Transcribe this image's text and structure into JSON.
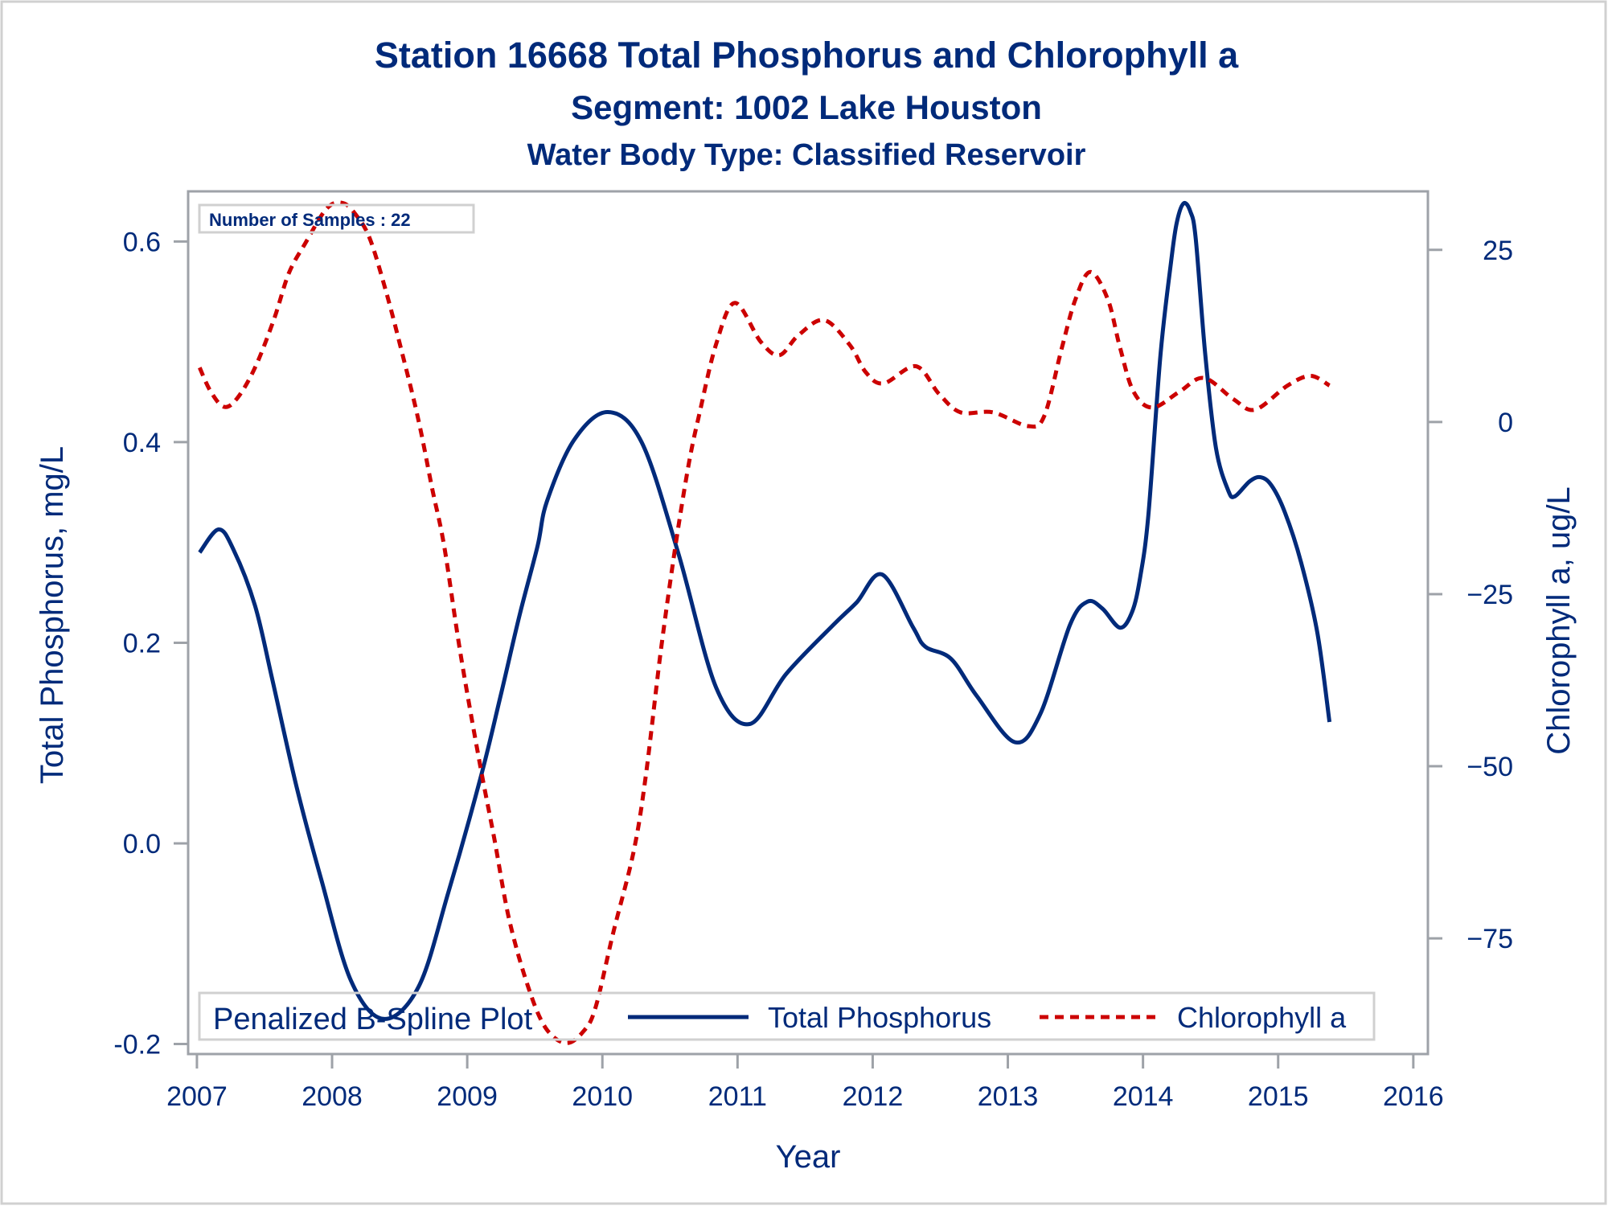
{
  "chart_data": {
    "type": "line",
    "title": "Station 16668  Total Phosphorus and Chlorophyll a",
    "subtitle": "Segment: 1002  Lake Houston",
    "subtitle2": "Water Body Type: Classified Reservoir",
    "xlabel": "Year",
    "ylabel": "Total Phosphorus, mg/L",
    "y2label": "Chlorophyll a, ug/L",
    "xlim": [
      2006.935,
      2016.108
    ],
    "ylim": [
      -0.21,
      0.65
    ],
    "y2lim": [
      -91.8,
      33.5
    ],
    "x_ticks": [
      2007,
      2008,
      2009,
      2010,
      2011,
      2012,
      2013,
      2014,
      2015,
      2016
    ],
    "x_tick_labels": [
      "2007",
      "2008",
      "2009",
      "2010",
      "2011",
      "2012",
      "2013",
      "2014",
      "2015",
      "2016"
    ],
    "y_ticks": [
      -0.2,
      0.0,
      0.2,
      0.4,
      0.6
    ],
    "y_tick_labels": [
      "-0.2",
      "0.0",
      "0.2",
      "0.4",
      "0.6"
    ],
    "y2_ticks": [
      -75,
      -50,
      -25,
      0,
      25
    ],
    "y2_tick_labels": [
      "−75",
      "−50",
      "−25",
      "0",
      "25"
    ],
    "grid": false,
    "inset_text": "Number of Samples : 22",
    "legend": {
      "title": "Penalized B-Spline Plot",
      "placement": "bottom-inside",
      "entries": [
        "Total Phosphorus",
        "Chlorophyll a"
      ]
    },
    "series": [
      {
        "name": "Total Phosphorus",
        "axis": "left",
        "style": "solid",
        "color": "#002A7A",
        "x": [
          2007.02,
          2007.16,
          2007.27,
          2007.43,
          2007.56,
          2007.74,
          2007.92,
          2008.14,
          2008.38,
          2008.64,
          2008.86,
          2009.1,
          2009.25,
          2009.39,
          2009.52,
          2009.59,
          2009.79,
          2010.04,
          2010.29,
          2010.56,
          2010.84,
          2011.09,
          2011.36,
          2011.71,
          2011.88,
          2012.07,
          2012.3,
          2012.39,
          2012.58,
          2012.77,
          2013.05,
          2013.24,
          2013.46,
          2013.59,
          2013.7,
          2013.83,
          2013.92,
          2013.98,
          2014.04,
          2014.13,
          2014.21,
          2014.25,
          2014.3,
          2014.35,
          2014.39,
          2014.46,
          2014.54,
          2014.63,
          2014.68,
          2014.79,
          2014.87,
          2014.95,
          2015.05,
          2015.17,
          2015.29,
          2015.38
        ],
        "y": [
          0.29,
          0.313,
          0.293,
          0.237,
          0.162,
          0.055,
          -0.036,
          -0.137,
          -0.175,
          -0.143,
          -0.049,
          0.066,
          0.149,
          0.229,
          0.296,
          0.341,
          0.402,
          0.43,
          0.4,
          0.29,
          0.156,
          0.119,
          0.169,
          0.218,
          0.24,
          0.268,
          0.215,
          0.196,
          0.184,
          0.147,
          0.101,
          0.129,
          0.218,
          0.241,
          0.234,
          0.215,
          0.231,
          0.266,
          0.328,
          0.488,
          0.582,
          0.619,
          0.638,
          0.63,
          0.603,
          0.488,
          0.394,
          0.352,
          0.346,
          0.361,
          0.365,
          0.357,
          0.33,
          0.28,
          0.21,
          0.121
        ]
      },
      {
        "name": "Chlorophyll a",
        "axis": "right",
        "style": "dashed",
        "color": "#CC0000",
        "x": [
          2007.02,
          2007.1,
          2007.2,
          2007.3,
          2007.43,
          2007.57,
          2007.68,
          2007.8,
          2007.96,
          2008.08,
          2008.18,
          2008.28,
          2008.4,
          2008.52,
          2008.64,
          2008.74,
          2008.83,
          2008.95,
          2009.09,
          2009.2,
          2009.31,
          2009.45,
          2009.58,
          2009.73,
          2009.86,
          2009.95,
          2010.08,
          2010.23,
          2010.32,
          2010.43,
          2010.54,
          2010.64,
          2010.72,
          2010.84,
          2010.98,
          2011.17,
          2011.31,
          2011.45,
          2011.64,
          2011.83,
          2011.95,
          2012.08,
          2012.32,
          2012.49,
          2012.65,
          2012.89,
          2013.15,
          2013.27,
          2013.4,
          2013.5,
          2013.61,
          2013.74,
          2013.83,
          2013.93,
          2014.07,
          2014.27,
          2014.45,
          2014.67,
          2014.83,
          2015.07,
          2015.24,
          2015.38
        ],
        "y": [
          7.9,
          4.5,
          2.2,
          3.5,
          7.9,
          14.9,
          21.6,
          25.9,
          31.0,
          31.8,
          30.0,
          26.6,
          18.9,
          9.9,
          0.2,
          -9.6,
          -18.1,
          -33.6,
          -49.3,
          -60.5,
          -72.2,
          -82.0,
          -88.0,
          -90.2,
          -88.5,
          -85.0,
          -74.2,
          -62.5,
          -51.6,
          -33.6,
          -18.1,
          -6.0,
          1.4,
          11.2,
          17.3,
          11.7,
          9.7,
          12.6,
          14.8,
          11.2,
          7.2,
          5.6,
          8.1,
          4.1,
          1.4,
          1.4,
          -0.6,
          0.9,
          10.8,
          17.8,
          21.8,
          17.8,
          10.8,
          4.4,
          2.1,
          4.4,
          6.4,
          3.3,
          1.8,
          5.3,
          6.7,
          5.3
        ]
      }
    ]
  }
}
